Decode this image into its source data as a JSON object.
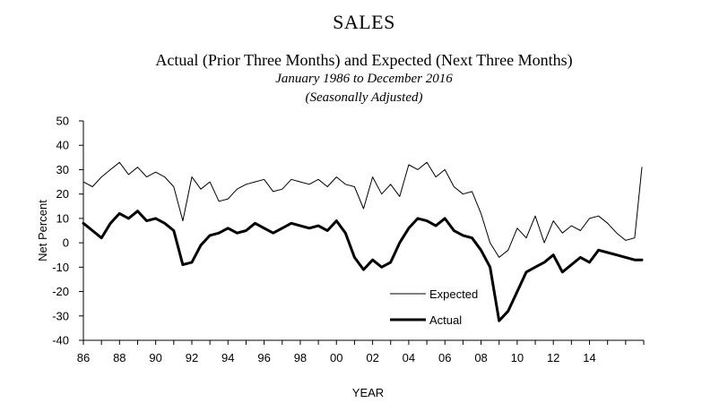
{
  "chart_data": {
    "type": "line",
    "title": "SALES",
    "subtitle": "Actual (Prior Three Months) and Expected (Next Three Months)",
    "subtitle2": "January 1986 to December 2016",
    "subtitle3": "(Seasonally Adjusted)",
    "xlabel": "YEAR",
    "ylabel": "Net Percent",
    "xlim": [
      1986,
      2017
    ],
    "ylim": [
      -40,
      50
    ],
    "yticks": [
      "50",
      "40",
      "30",
      "20",
      "10",
      "0",
      "-10",
      "-20",
      "-30",
      "-40"
    ],
    "xticks": [
      "86",
      "88",
      "90",
      "92",
      "94",
      "96",
      "98",
      "00",
      "02",
      "04",
      "06",
      "08",
      "10",
      "12",
      "14"
    ],
    "grid": false,
    "legend_position": "bottom-center",
    "series": [
      {
        "name": "Expected",
        "color": "#000000",
        "x": [
          1986.0,
          1986.5,
          1987.0,
          1987.5,
          1988.0,
          1988.5,
          1989.0,
          1989.5,
          1990.0,
          1990.5,
          1991.0,
          1991.5,
          1992.0,
          1992.5,
          1993.0,
          1993.5,
          1994.0,
          1994.5,
          1995.0,
          1995.5,
          1996.0,
          1996.5,
          1997.0,
          1997.5,
          1998.0,
          1998.5,
          1999.0,
          1999.5,
          2000.0,
          2000.5,
          2001.0,
          2001.5,
          2002.0,
          2002.5,
          2003.0,
          2003.5,
          2004.0,
          2004.5,
          2005.0,
          2005.5,
          2006.0,
          2006.5,
          2007.0,
          2007.5,
          2008.0,
          2008.5,
          2009.0,
          2009.5,
          2010.0,
          2010.5,
          2011.0,
          2011.5,
          2012.0,
          2012.5,
          2013.0,
          2013.5,
          2014.0,
          2014.5,
          2015.0,
          2015.5,
          2016.0,
          2016.5,
          2016.9
        ],
        "values": [
          25,
          23,
          27,
          30,
          33,
          28,
          31,
          27,
          29,
          27,
          23,
          9,
          27,
          22,
          25,
          17,
          18,
          22,
          24,
          25,
          26,
          21,
          22,
          26,
          25,
          24,
          26,
          23,
          27,
          24,
          23,
          14,
          27,
          20,
          24,
          19,
          32,
          30,
          33,
          27,
          30,
          23,
          20,
          21,
          12,
          0,
          -6,
          -3,
          6,
          2,
          11,
          0,
          9,
          4,
          7,
          5,
          10,
          11,
          8,
          4,
          1,
          2,
          31
        ]
      },
      {
        "name": "Actual",
        "color": "#000000",
        "x": [
          1986.0,
          1986.5,
          1987.0,
          1987.5,
          1988.0,
          1988.5,
          1989.0,
          1989.5,
          1990.0,
          1990.5,
          1991.0,
          1991.5,
          1992.0,
          1992.5,
          1993.0,
          1993.5,
          1994.0,
          1994.5,
          1995.0,
          1995.5,
          1996.0,
          1996.5,
          1997.0,
          1997.5,
          1998.0,
          1998.5,
          1999.0,
          1999.5,
          2000.0,
          2000.5,
          2001.0,
          2001.5,
          2002.0,
          2002.5,
          2003.0,
          2003.5,
          2004.0,
          2004.5,
          2005.0,
          2005.5,
          2006.0,
          2006.5,
          2007.0,
          2007.5,
          2008.0,
          2008.5,
          2009.0,
          2009.5,
          2010.0,
          2010.5,
          2011.0,
          2011.5,
          2012.0,
          2012.5,
          2013.0,
          2013.5,
          2014.0,
          2014.5,
          2015.0,
          2015.5,
          2016.0,
          2016.5,
          2016.9
        ],
        "values": [
          8,
          5,
          2,
          8,
          12,
          10,
          13,
          9,
          10,
          8,
          5,
          -9,
          -8,
          -1,
          3,
          4,
          6,
          4,
          5,
          8,
          6,
          4,
          6,
          8,
          7,
          6,
          7,
          5,
          9,
          4,
          -6,
          -11,
          -7,
          -10,
          -8,
          0,
          6,
          10,
          9,
          7,
          10,
          5,
          3,
          2,
          -3,
          -10,
          -32,
          -28,
          -20,
          -12,
          -10,
          -8,
          -5,
          -12,
          -9,
          -6,
          -8,
          -3,
          -4,
          -5,
          -6,
          -7,
          -7
        ]
      }
    ]
  }
}
